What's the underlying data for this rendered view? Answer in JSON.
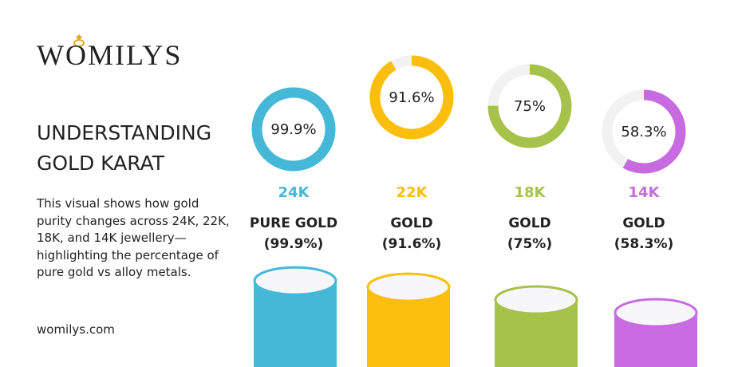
{
  "brand": "WOMILYS",
  "header": {
    "title_lines": [
      "UNDERSTANDING",
      "GOLD KARAT"
    ],
    "description": "This visual shows how gold purity changes across 24K, 22K, 18K, and 14K jewellery—highlighting the percentage of pure gold vs alloy metals.",
    "website": "womilys.com"
  },
  "chart_data": {
    "type": "donut",
    "categories": [
      "24K",
      "22K",
      "18K",
      "14K"
    ],
    "subtitles": [
      [
        "PURE GOLD",
        "(99.9%)"
      ],
      [
        "GOLD",
        "(91.6%)"
      ],
      [
        "GOLD",
        "(75%)"
      ],
      [
        "GOLD",
        "(58.3%)"
      ]
    ],
    "values": [
      99.9,
      91.6,
      75,
      58.3
    ],
    "value_labels": [
      "99.9%",
      "91.6%",
      "75%",
      "58.3%"
    ],
    "colors": [
      "#45b8d8",
      "#fbbe0c",
      "#a7c24a",
      "#c86be0"
    ],
    "ylim": [
      0,
      100
    ]
  }
}
